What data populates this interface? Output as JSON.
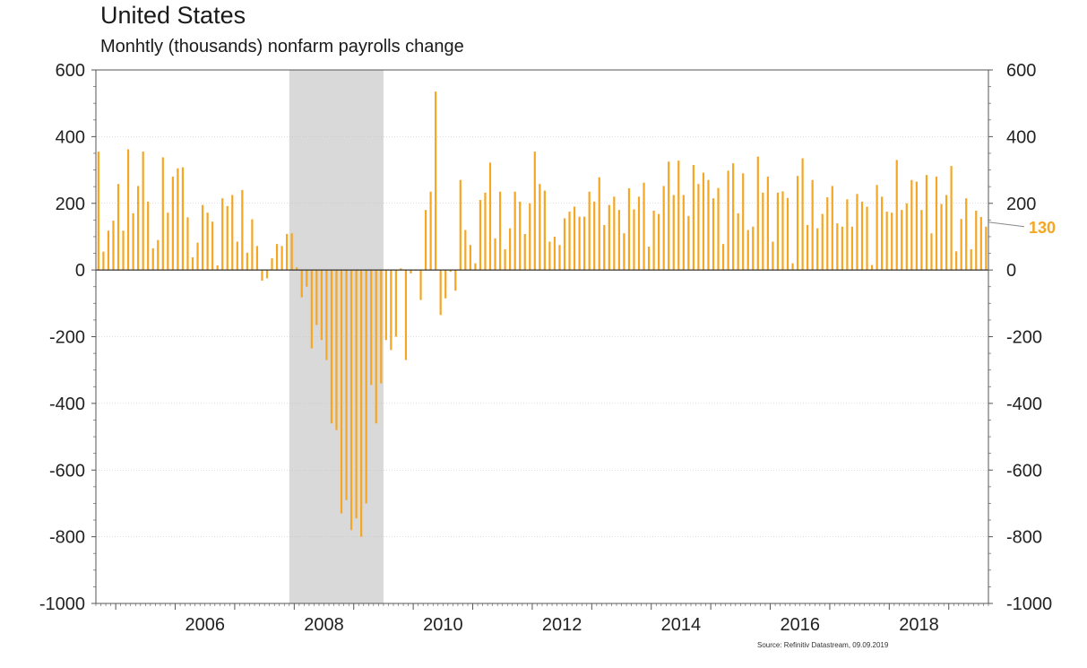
{
  "chart_data": {
    "type": "bar",
    "title": "United States",
    "subtitle": "Monhtly (thousands) nonfarm payrolls change",
    "source": "Source: Refinitiv Datastream, 09.09.2019",
    "ylim": [
      -1000,
      600
    ],
    "y_ticks": [
      600,
      400,
      200,
      0,
      -200,
      -400,
      -600,
      -800,
      -1000
    ],
    "x_tick_labels": [
      "2006",
      "2008",
      "2010",
      "2012",
      "2014",
      "2016",
      "2018"
    ],
    "x_start": "2004-09",
    "grid": true,
    "shaded_period": {
      "start": "2007-12",
      "end": "2009-06"
    },
    "last_value_label": "130",
    "bar_color": "#f5a623",
    "shade_color": "#d9d9d9",
    "values": [
      355,
      55,
      118,
      148,
      258,
      118,
      362,
      170,
      252,
      355,
      205,
      65,
      90,
      338,
      172,
      280,
      305,
      308,
      158,
      38,
      82,
      195,
      172,
      145,
      14,
      215,
      192,
      225,
      85,
      240,
      52,
      152,
      72,
      -32,
      -25,
      35,
      78,
      72,
      108,
      110,
      8,
      -82,
      -50,
      -235,
      -165,
      -210,
      -270,
      -460,
      -480,
      -730,
      -690,
      -780,
      -745,
      -800,
      -700,
      -345,
      -460,
      -340,
      -210,
      -240,
      -200,
      5,
      -270,
      -10,
      0,
      -90,
      180,
      235,
      535,
      -135,
      -85,
      -5,
      -62,
      270,
      120,
      75,
      20,
      210,
      232,
      322,
      95,
      235,
      62,
      125,
      235,
      205,
      108,
      200,
      355,
      258,
      238,
      85,
      100,
      75,
      155,
      175,
      190,
      160,
      160,
      235,
      205,
      278,
      135,
      195,
      220,
      180,
      110,
      245,
      182,
      220,
      262,
      70,
      178,
      168,
      252,
      325,
      225,
      328,
      225,
      162,
      315,
      258,
      292,
      270,
      215,
      246,
      78,
      298,
      320,
      170,
      290,
      120,
      130,
      340,
      232,
      280,
      85,
      232,
      236,
      216,
      20,
      282,
      335,
      135,
      270,
      125,
      168,
      218,
      252,
      140,
      130,
      212,
      130,
      228,
      205,
      190,
      15,
      255,
      220,
      175,
      172,
      330,
      180,
      200,
      270,
      265,
      180,
      285,
      110,
      280,
      198,
      225,
      312,
      56,
      153,
      215,
      62,
      178,
      159,
      130
    ]
  }
}
